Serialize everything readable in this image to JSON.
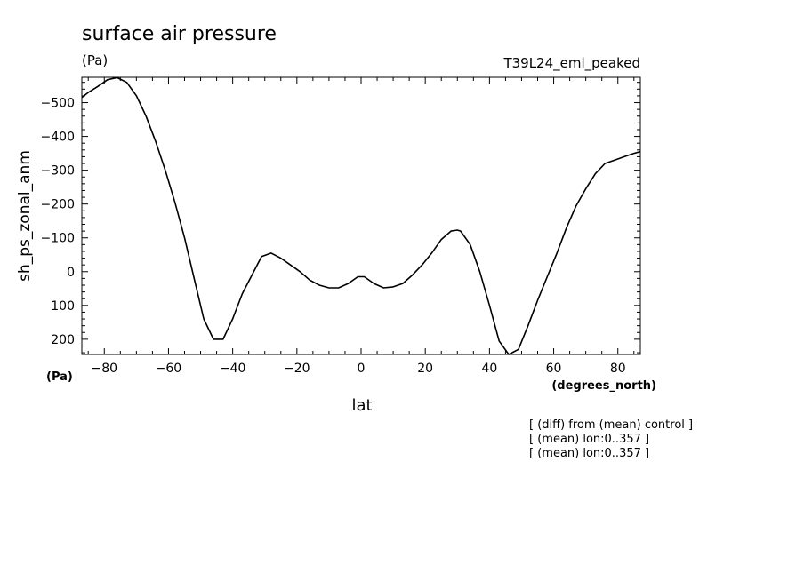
{
  "chart_data": {
    "type": "line",
    "title": "surface air pressure",
    "units_label": "(Pa)",
    "run_label": "T39L24_eml_peaked",
    "xlabel": "lat",
    "xunits": "(degrees_north)",
    "ylabel": "sh_ps_zonal_anm",
    "yunits": "(Pa)",
    "xlim": [
      -87,
      87
    ],
    "ylim": [
      245,
      -575
    ],
    "y_axis_reversed": true,
    "grid": false,
    "xticks": [
      -80,
      -60,
      -40,
      -20,
      0,
      20,
      40,
      60,
      80
    ],
    "xtick_labels": [
      "−80",
      "−60",
      "−40",
      "−20",
      "0",
      "20",
      "40",
      "60",
      "80"
    ],
    "yticks": [
      -500,
      -400,
      -300,
      -200,
      -100,
      0,
      100,
      200
    ],
    "ytick_labels": [
      "−500",
      "−400",
      "−300",
      "−200",
      "−100",
      "0",
      "100",
      "200"
    ],
    "series": [
      {
        "x": [
          -87,
          -85,
          -82,
          -79,
          -76,
          -73,
          -70,
          -67,
          -64,
          -61,
          -58,
          -55,
          -52,
          -49,
          -46,
          -43,
          -40,
          -37,
          -34,
          -31,
          -28,
          -25,
          -22,
          -19,
          -16,
          -13,
          -10,
          -7,
          -4,
          -1,
          1,
          4,
          7,
          10,
          13,
          16,
          19,
          22,
          25,
          28,
          30,
          31,
          34,
          37,
          40,
          43,
          46,
          49,
          52,
          55,
          58,
          61,
          64,
          67,
          70,
          73,
          76,
          79,
          82,
          85,
          87
        ],
        "y": [
          -515,
          -530,
          -548,
          -568,
          -574,
          -560,
          -520,
          -460,
          -385,
          -300,
          -205,
          -100,
          20,
          140,
          200,
          200,
          140,
          65,
          10,
          -45,
          -55,
          -40,
          -20,
          0,
          25,
          40,
          48,
          48,
          35,
          15,
          15,
          35,
          48,
          45,
          35,
          10,
          -20,
          -55,
          -95,
          -120,
          -123,
          -120,
          -80,
          0,
          100,
          205,
          245,
          230,
          160,
          85,
          15,
          -55,
          -130,
          -195,
          -245,
          -290,
          -320,
          -330,
          -340,
          -350,
          -355
        ]
      }
    ],
    "annotations": [
      "[ (diff) from (mean) control ]",
      "[ (mean) lon:0..357 ]",
      "[ (mean) lon:0..357 ]"
    ]
  }
}
